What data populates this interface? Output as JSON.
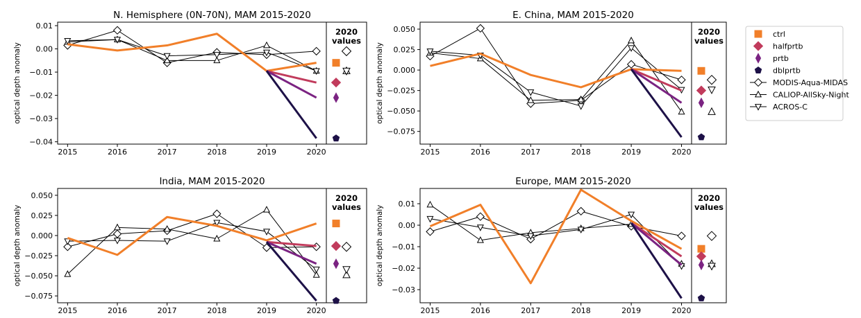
{
  "legend": {
    "series": [
      {
        "name": "ctrl",
        "color": "#f17f29",
        "marker": "square",
        "filled": true
      },
      {
        "name": "halfprtb",
        "color": "#c13b5c",
        "marker": "diamond",
        "filled": true
      },
      {
        "name": "prtb",
        "color": "#7b2382",
        "marker": "thin_diamond",
        "filled": true
      },
      {
        "name": "dblprtb",
        "color": "#1d1147",
        "marker": "pentagon",
        "filled": true
      },
      {
        "name": "MODIS-Aqua-MIDAS",
        "color": "#000000",
        "marker": "diamond",
        "filled": false
      },
      {
        "name": "CALIOP-AllSky-Night",
        "color": "#000000",
        "marker": "triangle_up",
        "filled": false
      },
      {
        "name": "ACROS-C",
        "color": "#000000",
        "marker": "triangle_down",
        "filled": false
      }
    ]
  },
  "chart_data": [
    {
      "type": "line",
      "title": "N. Hemisphere (0N-70N), MAM 2015-2020",
      "ylabel": "optical depth anomaly",
      "side_title": "2020 values",
      "x": [
        2015,
        2016,
        2017,
        2018,
        2019,
        2020
      ],
      "xlim": [
        2014.8,
        2020.2
      ],
      "xticks": [
        2015,
        2016,
        2017,
        2018,
        2019,
        2020
      ],
      "ylim": [
        -0.041,
        0.0115
      ],
      "yticks": [
        0.01,
        {
          "value": 0,
          "label": "0.00"
        },
        {
          "value": -0.01,
          "label": "−0.01"
        },
        {
          "value": -0.02,
          "label": "−0.02"
        },
        {
          "value": -0.03,
          "label": "−0.03"
        },
        {
          "value": -0.04,
          "label": "−0.04"
        }
      ],
      "series": [
        {
          "values": [
            0.002,
            -0.0007,
            0.0015,
            0.0065,
            -0.0095,
            -0.006
          ]
        },
        {
          "values": [
            null,
            null,
            null,
            null,
            -0.0095,
            -0.0145
          ]
        },
        {
          "values": [
            null,
            null,
            null,
            null,
            -0.0095,
            -0.021
          ]
        },
        {
          "values": [
            null,
            null,
            null,
            null,
            -0.0095,
            -0.0385
          ]
        },
        {
          "values": [
            0.0015,
            0.008,
            -0.006,
            -0.0015,
            -0.0025,
            -0.001
          ]
        },
        {
          "values": [
            0.003,
            0.004,
            -0.005,
            -0.005,
            0.0015,
            -0.0095
          ]
        },
        {
          "values": [
            0.0035,
            0.004,
            -0.003,
            -0.0025,
            -0.0015,
            -0.0095
          ]
        }
      ]
    },
    {
      "type": "line",
      "title": "E. China, MAM 2015-2020",
      "ylabel": "optical depth anomaly",
      "side_title": "2020 values",
      "x": [
        2015,
        2016,
        2017,
        2018,
        2019,
        2020
      ],
      "xlim": [
        2014.8,
        2020.2
      ],
      "xticks": [
        2015,
        2016,
        2017,
        2018,
        2019,
        2020
      ],
      "ylim": [
        -0.0905,
        0.0585
      ],
      "yticks": [
        {
          "value": 0.05,
          "label": "0.050"
        },
        {
          "value": 0.025,
          "label": "0.025"
        },
        {
          "value": 0,
          "label": "0.000"
        },
        {
          "value": -0.025,
          "label": "−0.025"
        },
        {
          "value": -0.05,
          "label": "−0.050"
        },
        {
          "value": -0.075,
          "label": "−0.075"
        }
      ],
      "series": [
        {
          "values": [
            0.005,
            0.02,
            -0.006,
            -0.021,
            0.001,
            -0.001
          ]
        },
        {
          "values": [
            null,
            null,
            null,
            null,
            0.001,
            -0.025
          ]
        },
        {
          "values": [
            null,
            null,
            null,
            null,
            0.001,
            -0.04
          ]
        },
        {
          "values": [
            null,
            null,
            null,
            null,
            0.001,
            -0.082
          ]
        },
        {
          "values": [
            0.017,
            0.051,
            -0.041,
            -0.037,
            0.007,
            -0.012
          ]
        },
        {
          "values": [
            0.021,
            0.014,
            -0.037,
            -0.036,
            0.036,
            -0.051
          ]
        },
        {
          "values": [
            0.023,
            0.018,
            -0.027,
            -0.044,
            0.027,
            -0.024
          ]
        }
      ]
    },
    {
      "type": "line",
      "title": "India, MAM 2015-2020",
      "ylabel": "optical depth anomaly",
      "side_title": "2020 values",
      "x": [
        2015,
        2016,
        2017,
        2018,
        2019,
        2020
      ],
      "xlim": [
        2014.8,
        2020.2
      ],
      "xticks": [
        2015,
        2016,
        2017,
        2018,
        2019,
        2020
      ],
      "ylim": [
        -0.0835,
        0.0585
      ],
      "yticks": [
        {
          "value": 0.05,
          "label": "0.050"
        },
        {
          "value": 0.025,
          "label": "0.025"
        },
        {
          "value": 0,
          "label": "0.000"
        },
        {
          "value": -0.025,
          "label": "−0.025"
        },
        {
          "value": -0.05,
          "label": "−0.050"
        },
        {
          "value": -0.075,
          "label": "−0.075"
        }
      ],
      "series": [
        {
          "values": [
            -0.003,
            -0.024,
            0.023,
            0.012,
            -0.006,
            0.015
          ]
        },
        {
          "values": [
            null,
            null,
            null,
            null,
            -0.008,
            -0.013
          ]
        },
        {
          "values": [
            null,
            null,
            null,
            null,
            -0.008,
            -0.035
          ]
        },
        {
          "values": [
            null,
            null,
            null,
            null,
            -0.008,
            -0.081
          ]
        },
        {
          "values": [
            -0.014,
            0.002,
            0.006,
            0.027,
            -0.015,
            -0.014
          ]
        },
        {
          "values": [
            -0.048,
            0.01,
            0.008,
            -0.004,
            0.032,
            -0.049
          ]
        },
        {
          "values": [
            -0.007,
            -0.006,
            -0.007,
            0.016,
            0.005,
            -0.042
          ]
        }
      ]
    },
    {
      "type": "line",
      "title": "Europe, MAM 2015-2020",
      "ylabel": "optical depth anomaly",
      "side_title": "2020 values",
      "x": [
        2015,
        2016,
        2017,
        2018,
        2019,
        2020
      ],
      "xlim": [
        2014.8,
        2020.2
      ],
      "xticks": [
        2015,
        2016,
        2017,
        2018,
        2019,
        2020
      ],
      "ylim": [
        -0.0361,
        0.0171
      ],
      "yticks": [
        0.01,
        {
          "value": 0,
          "label": "0.00"
        },
        {
          "value": -0.01,
          "label": "−0.01"
        },
        {
          "value": -0.02,
          "label": "−0.02"
        },
        {
          "value": -0.03,
          "label": "−0.03"
        }
      ],
      "series": [
        {
          "values": [
            -0.0005,
            0.0095,
            -0.027,
            0.0165,
            0.002,
            -0.011
          ]
        },
        {
          "values": [
            null,
            null,
            null,
            null,
            0.001,
            -0.0145
          ]
        },
        {
          "values": [
            null,
            null,
            null,
            null,
            0.001,
            -0.0185
          ]
        },
        {
          "values": [
            null,
            null,
            null,
            null,
            0.001,
            -0.034
          ]
        },
        {
          "values": [
            -0.003,
            0.004,
            -0.0065,
            0.0065,
            -0.0005,
            -0.005
          ]
        },
        {
          "values": [
            0.0095,
            -0.007,
            -0.0035,
            -0.0015,
            0.0005,
            -0.018
          ]
        },
        {
          "values": [
            0.003,
            -0.001,
            -0.005,
            -0.002,
            0.005,
            -0.019
          ]
        }
      ]
    }
  ]
}
